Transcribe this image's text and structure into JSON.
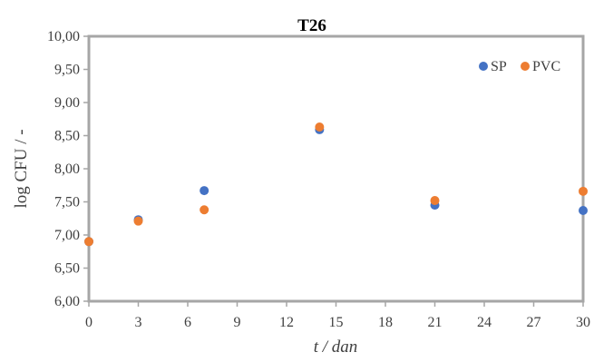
{
  "chart_data": {
    "type": "scatter",
    "title": "T26",
    "xlabel": "t / dan",
    "ylabel": "log CFU / -",
    "xlim": [
      0,
      30
    ],
    "ylim": [
      6.0,
      10.0
    ],
    "x_ticks": [
      0,
      3,
      6,
      9,
      12,
      15,
      18,
      21,
      24,
      27,
      30
    ],
    "x_tick_labels": [
      "0",
      "3",
      "6",
      "9",
      "12",
      "15",
      "18",
      "21",
      "24",
      "27",
      "30"
    ],
    "y_ticks": [
      6.0,
      6.5,
      7.0,
      7.5,
      8.0,
      8.5,
      9.0,
      9.5,
      10.0
    ],
    "y_tick_labels": [
      "6,00",
      "6,50",
      "7,00",
      "7,50",
      "8,00",
      "8,50",
      "9,00",
      "9,50",
      "10,00"
    ],
    "grid": false,
    "legend_position": "top-right",
    "series": [
      {
        "name": "SP",
        "color": "#4472C4",
        "x": [
          0,
          3,
          7,
          14,
          21,
          30
        ],
        "y": [
          6.9,
          7.23,
          7.67,
          8.59,
          7.45,
          7.37
        ]
      },
      {
        "name": "PVC",
        "color": "#ED7D31",
        "x": [
          0,
          3,
          7,
          14,
          21,
          30
        ],
        "y": [
          6.9,
          7.21,
          7.38,
          8.63,
          7.52,
          7.66
        ]
      }
    ]
  }
}
